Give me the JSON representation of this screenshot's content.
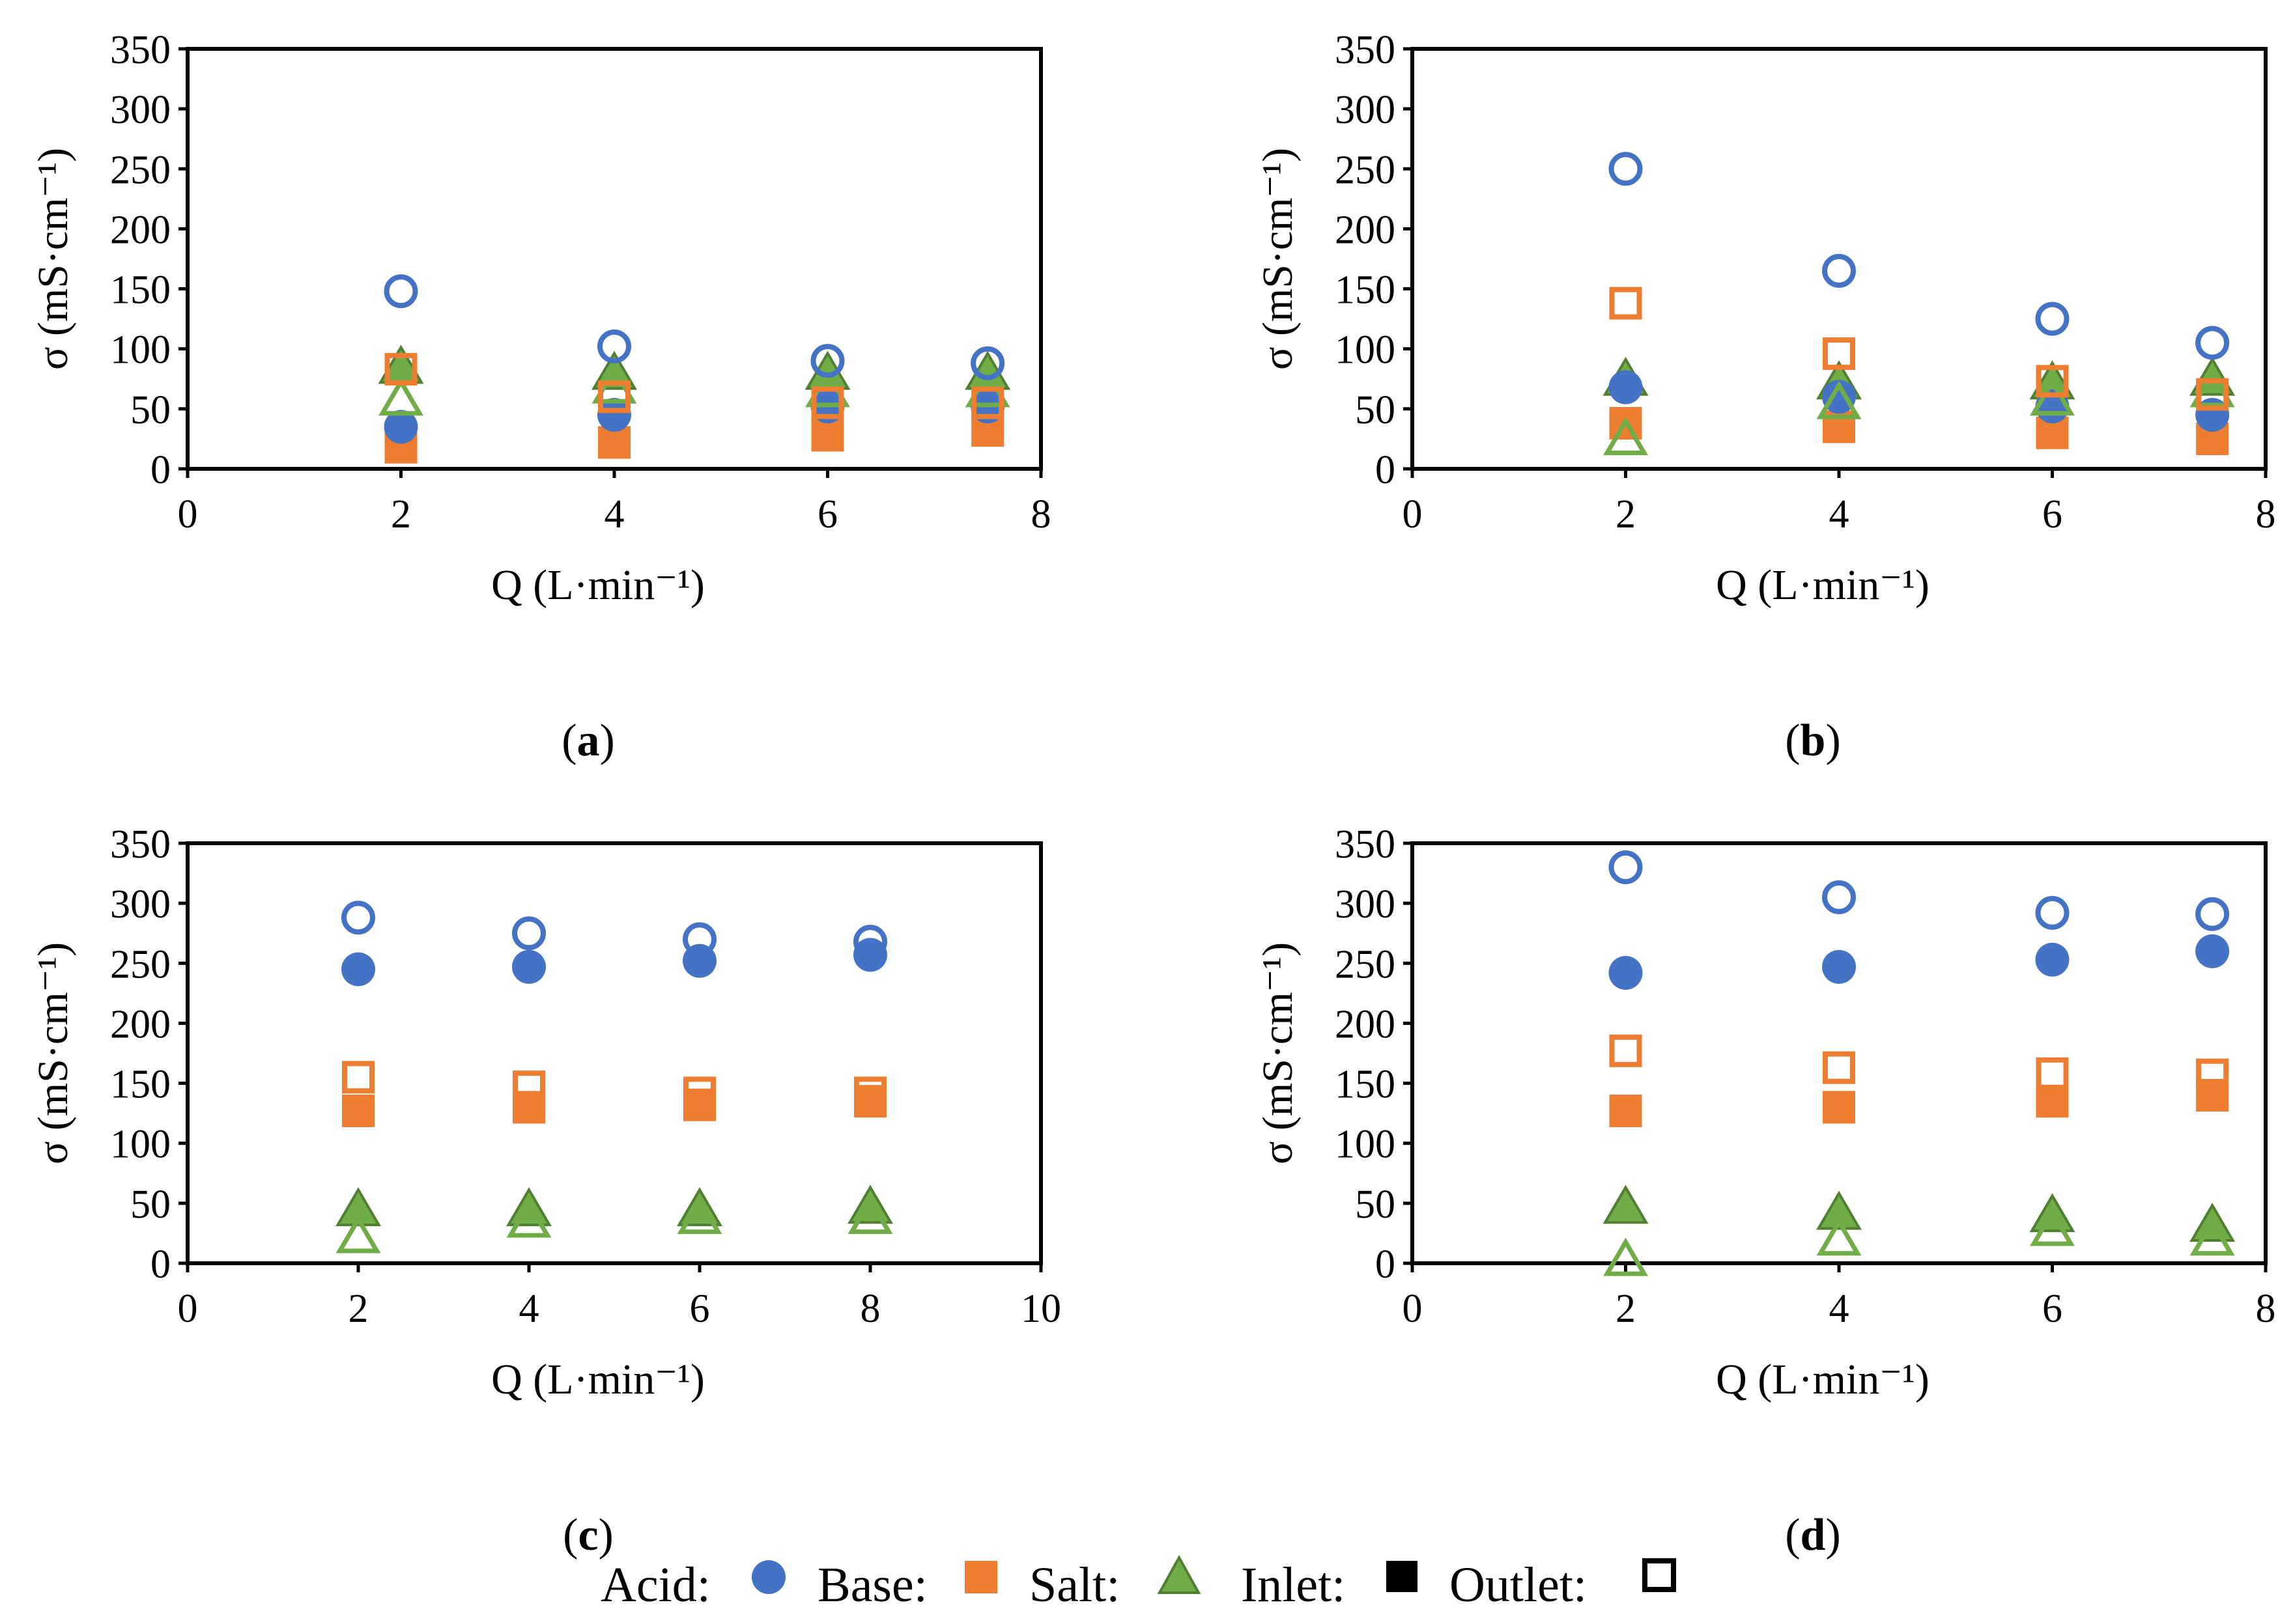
{
  "colors": {
    "acid": "#4472C4",
    "base": "#ED7D31",
    "salt": "#70AD47",
    "salt_edge": "#507E32"
  },
  "legend": {
    "acid_label": "Acid:",
    "base_label": "Base:",
    "salt_label": "Salt:",
    "inlet_label": "Inlet:",
    "outlet_label": "Outlet:"
  },
  "chart_data": [
    {
      "id": "a",
      "type": "scatter",
      "panel_label": "a",
      "ylabel": "σ (mS·cm⁻¹)",
      "xlabel": "Q (L·min⁻¹)",
      "xlim": [
        0,
        8
      ],
      "ylim": [
        0,
        350
      ],
      "xticks": [
        0,
        2,
        4,
        6,
        8
      ],
      "yticks": [
        0,
        50,
        100,
        150,
        200,
        250,
        300,
        350
      ],
      "grid": false,
      "x": [
        2,
        4,
        6,
        7.5
      ],
      "series": [
        {
          "name": "Acid Inlet",
          "stream": "acid",
          "position": "inlet",
          "values": [
            35,
            45,
            52,
            52
          ]
        },
        {
          "name": "Acid Outlet",
          "stream": "acid",
          "position": "outlet",
          "values": [
            148,
            102,
            90,
            88
          ]
        },
        {
          "name": "Base Inlet",
          "stream": "base",
          "position": "inlet",
          "values": [
            18,
            22,
            28,
            32
          ]
        },
        {
          "name": "Base Outlet",
          "stream": "base",
          "position": "outlet",
          "values": [
            83,
            60,
            55,
            55
          ]
        },
        {
          "name": "Salt Inlet",
          "stream": "salt",
          "position": "inlet",
          "values": [
            85,
            80,
            80,
            80
          ]
        },
        {
          "name": "Salt Outlet",
          "stream": "salt",
          "position": "outlet",
          "values": [
            58,
            68,
            65,
            65
          ]
        }
      ]
    },
    {
      "id": "b",
      "type": "scatter",
      "panel_label": "b",
      "ylabel": "σ (mS·cm⁻¹)",
      "xlabel": "Q (L·min⁻¹)",
      "xlim": [
        0,
        8
      ],
      "ylim": [
        0,
        350
      ],
      "xticks": [
        0,
        2,
        4,
        6,
        8
      ],
      "yticks": [
        0,
        50,
        100,
        150,
        200,
        250,
        300,
        350
      ],
      "grid": false,
      "x": [
        2,
        4,
        6,
        7.5
      ],
      "series": [
        {
          "name": "Acid Inlet",
          "stream": "acid",
          "position": "inlet",
          "values": [
            68,
            60,
            52,
            45
          ]
        },
        {
          "name": "Acid Outlet",
          "stream": "acid",
          "position": "outlet",
          "values": [
            250,
            165,
            125,
            105
          ]
        },
        {
          "name": "Base Inlet",
          "stream": "base",
          "position": "inlet",
          "values": [
            38,
            35,
            30,
            25
          ]
        },
        {
          "name": "Base Outlet",
          "stream": "base",
          "position": "outlet",
          "values": [
            138,
            96,
            73,
            62
          ]
        },
        {
          "name": "Salt Inlet",
          "stream": "salt",
          "position": "inlet",
          "values": [
            75,
            72,
            72,
            75
          ]
        },
        {
          "name": "Salt Outlet",
          "stream": "salt",
          "position": "outlet",
          "values": [
            25,
            55,
            58,
            65
          ]
        }
      ]
    },
    {
      "id": "c",
      "type": "scatter",
      "panel_label": "c",
      "ylabel": "σ (mS·cm⁻¹)",
      "xlabel": "Q (L·min⁻¹)",
      "xlim": [
        0,
        10
      ],
      "ylim": [
        0,
        350
      ],
      "xticks": [
        0,
        2,
        4,
        6,
        8,
        10
      ],
      "yticks": [
        0,
        50,
        100,
        150,
        200,
        250,
        300,
        350
      ],
      "grid": false,
      "x": [
        2,
        4,
        6,
        8
      ],
      "series": [
        {
          "name": "Acid Inlet",
          "stream": "acid",
          "position": "inlet",
          "values": [
            245,
            247,
            252,
            257
          ]
        },
        {
          "name": "Acid Outlet",
          "stream": "acid",
          "position": "outlet",
          "values": [
            288,
            275,
            270,
            268
          ]
        },
        {
          "name": "Base Inlet",
          "stream": "base",
          "position": "inlet",
          "values": [
            127,
            130,
            132,
            135
          ]
        },
        {
          "name": "Base Outlet",
          "stream": "base",
          "position": "outlet",
          "values": [
            155,
            147,
            142,
            142
          ]
        },
        {
          "name": "Salt Inlet",
          "stream": "salt",
          "position": "inlet",
          "values": [
            45,
            45,
            45,
            47
          ]
        },
        {
          "name": "Salt Outlet",
          "stream": "salt",
          "position": "outlet",
          "values": [
            22,
            35,
            38,
            38
          ]
        }
      ]
    },
    {
      "id": "d",
      "type": "scatter",
      "panel_label": "d",
      "ylabel": "σ (mS·cm⁻¹)",
      "xlabel": "Q (L·min⁻¹)",
      "xlim": [
        0,
        8
      ],
      "ylim": [
        0,
        350
      ],
      "xticks": [
        0,
        2,
        4,
        6,
        8
      ],
      "yticks": [
        0,
        50,
        100,
        150,
        200,
        250,
        300,
        350
      ],
      "grid": false,
      "x": [
        2,
        4,
        6,
        7.5
      ],
      "series": [
        {
          "name": "Acid Inlet",
          "stream": "acid",
          "position": "inlet",
          "values": [
            242,
            247,
            253,
            260
          ]
        },
        {
          "name": "Acid Outlet",
          "stream": "acid",
          "position": "outlet",
          "values": [
            330,
            305,
            292,
            291
          ]
        },
        {
          "name": "Base Inlet",
          "stream": "base",
          "position": "inlet",
          "values": [
            127,
            130,
            135,
            140
          ]
        },
        {
          "name": "Base Outlet",
          "stream": "base",
          "position": "outlet",
          "values": [
            177,
            163,
            158,
            157
          ]
        },
        {
          "name": "Salt Inlet",
          "stream": "salt",
          "position": "inlet",
          "values": [
            47,
            42,
            40,
            32
          ]
        },
        {
          "name": "Salt Outlet",
          "stream": "salt",
          "position": "outlet",
          "values": [
            3,
            20,
            28,
            20
          ]
        }
      ]
    }
  ]
}
